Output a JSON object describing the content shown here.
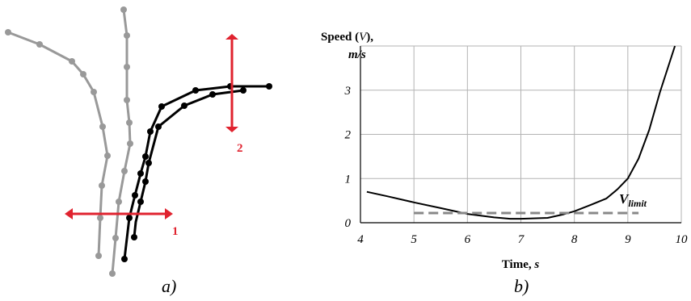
{
  "panel_a": {
    "label": "a)",
    "marker_1_label": "1",
    "marker_2_label": "2",
    "colors": {
      "gray_paths": "#999999",
      "black_paths": "#000000",
      "markers": "#e0232f"
    }
  },
  "panel_b": {
    "label": "b)"
  },
  "chart_data": {
    "type": "line",
    "title": "",
    "ylabel_prefix": "Speed (",
    "ylabel_var": "V",
    "ylabel_suffix": "),",
    "ylabel_unit": "m/s",
    "xlabel_prefix": "Time, ",
    "xlabel_unit": "s",
    "xlim": [
      4,
      10
    ],
    "ylim": [
      0,
      4
    ],
    "xticks": [
      "4",
      "5",
      "6",
      "7",
      "8",
      "9",
      "10"
    ],
    "yticks": [
      "0",
      "1",
      "2",
      "3"
    ],
    "grid": true,
    "series": [
      {
        "style": "solid",
        "color": "#000000",
        "x": [
          4.12,
          4.5,
          5.0,
          5.5,
          6.0,
          6.5,
          6.8,
          7.0,
          7.5,
          7.8,
          8.0,
          8.3,
          8.6,
          8.8,
          9.0,
          9.2,
          9.4,
          9.6,
          9.88
        ],
        "y": [
          0.7,
          0.6,
          0.46,
          0.33,
          0.2,
          0.12,
          0.09,
          0.09,
          0.11,
          0.19,
          0.26,
          0.4,
          0.55,
          0.75,
          1.0,
          1.45,
          2.1,
          2.95,
          4.0
        ]
      },
      {
        "name": "V_limit",
        "style": "dashed",
        "color": "#888888",
        "x": [
          5.0,
          9.2
        ],
        "y": [
          0.22,
          0.22
        ]
      }
    ],
    "annotation": {
      "text": "V",
      "subscript": "limit"
    }
  }
}
